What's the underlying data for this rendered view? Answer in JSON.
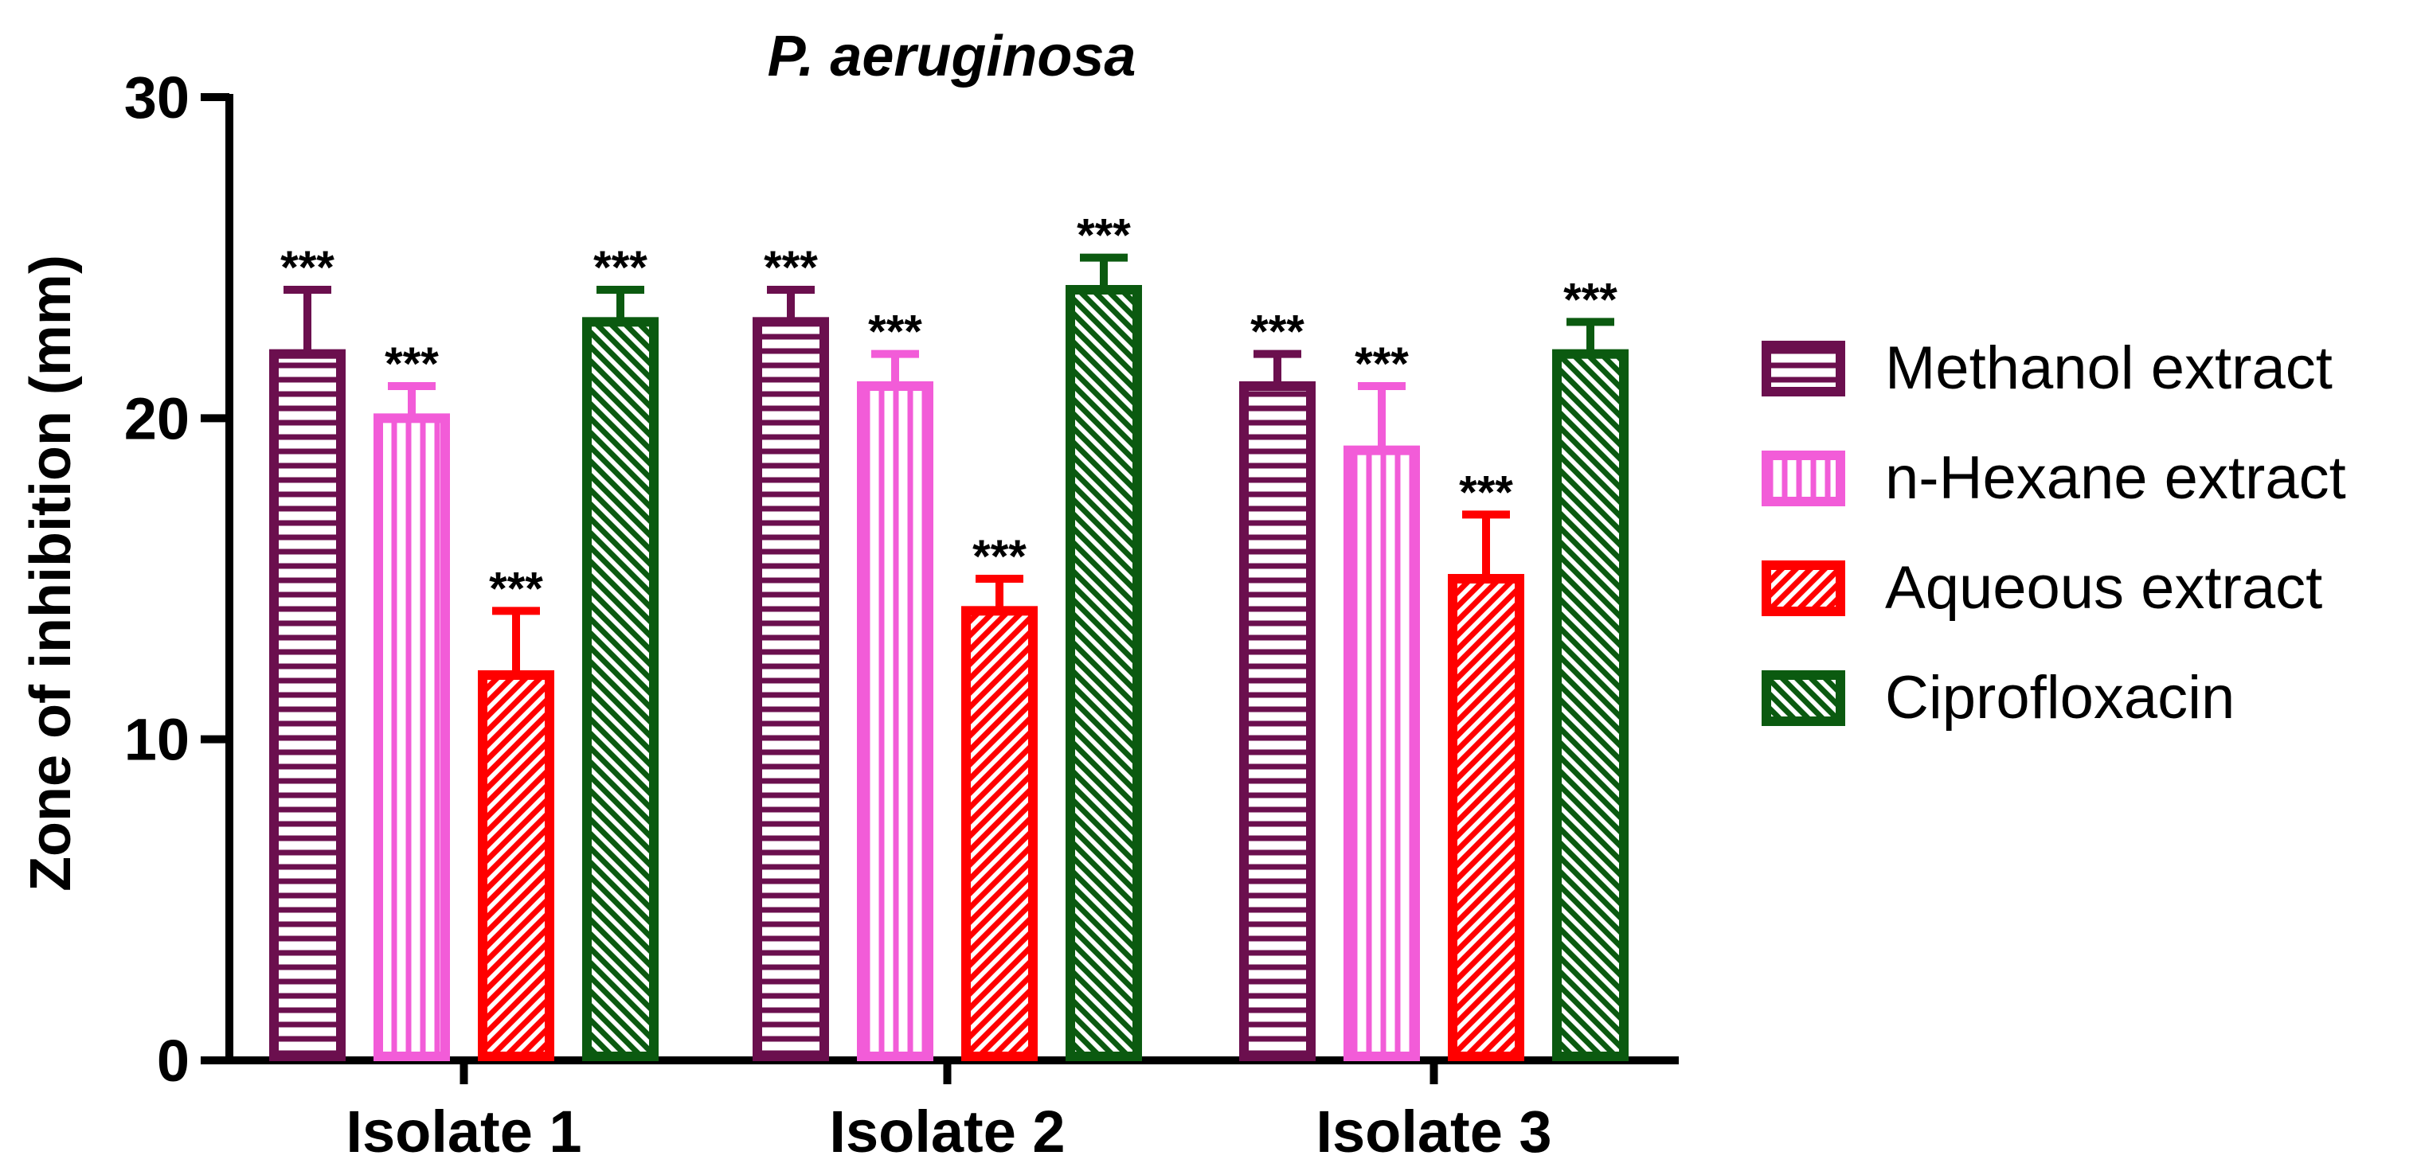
{
  "chart_data": {
    "type": "bar",
    "title": "P. aeruginosa",
    "xlabel": "",
    "ylabel": "Zone of inhibition (mm)",
    "ylim": [
      0,
      30
    ],
    "yticks": [
      0,
      10,
      20,
      30
    ],
    "categories": [
      "Isolate 1",
      "Isolate 2",
      "Isolate 3"
    ],
    "series": [
      {
        "name": "Methanol extract",
        "color": "#6B0F4E",
        "pattern": "horizontal",
        "values": [
          22,
          23,
          21
        ],
        "errors": [
          2,
          1,
          1
        ],
        "labels": [
          "***",
          "***",
          "***"
        ]
      },
      {
        "name": "n-Hexane extract",
        "color": "#F25CD8",
        "pattern": "vertical",
        "values": [
          20,
          21,
          19
        ],
        "errors": [
          1,
          1,
          2
        ],
        "labels": [
          "***",
          "***",
          "***"
        ]
      },
      {
        "name": "Aqueous extract",
        "color": "#FF0000",
        "pattern": "diagonal-up",
        "values": [
          12,
          14,
          15
        ],
        "errors": [
          2,
          1,
          2
        ],
        "labels": [
          "***",
          "***",
          "***"
        ]
      },
      {
        "name": "Ciprofloxacin",
        "color": "#0B5A10",
        "pattern": "diagonal-down",
        "values": [
          23,
          24,
          22
        ],
        "errors": [
          1,
          1,
          1
        ],
        "labels": [
          "***",
          "***",
          "***"
        ]
      }
    ],
    "legend_position": "right"
  }
}
